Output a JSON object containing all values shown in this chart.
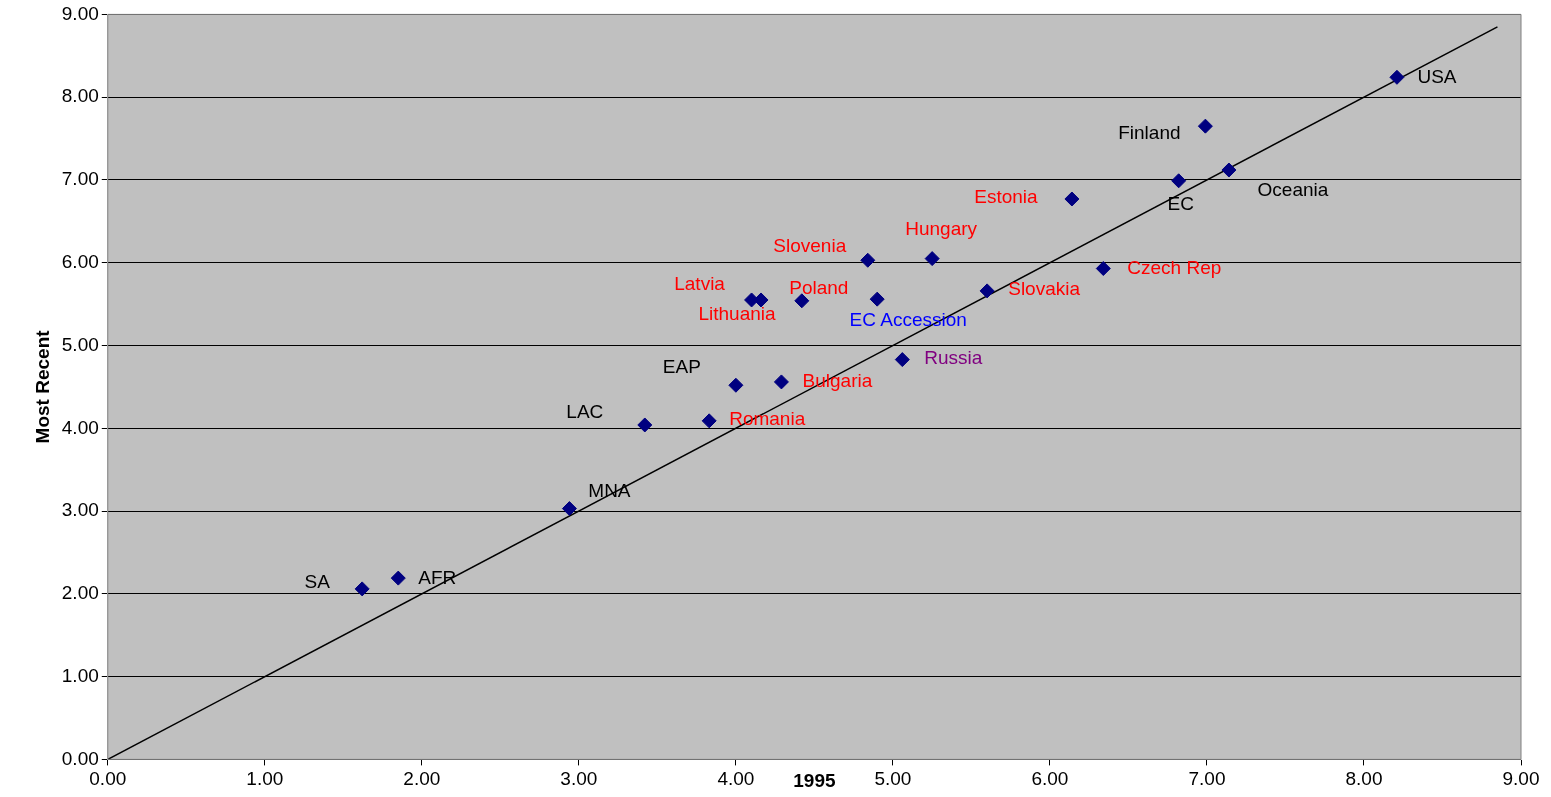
{
  "chart_data": {
    "type": "scatter",
    "xlabel": "1995",
    "ylabel": "Most Recent",
    "xlim": [
      0,
      9
    ],
    "ylim": [
      0,
      9
    ],
    "xticks": [
      {
        "value": 0,
        "label": "0.00"
      },
      {
        "value": 1,
        "label": "1.00"
      },
      {
        "value": 2,
        "label": "2.00"
      },
      {
        "value": 3,
        "label": "3.00"
      },
      {
        "value": 4,
        "label": "4.00"
      },
      {
        "value": 5,
        "label": "5.00"
      },
      {
        "value": 6,
        "label": "6.00"
      },
      {
        "value": 7,
        "label": "7.00"
      },
      {
        "value": 8,
        "label": "8.00"
      },
      {
        "value": 9,
        "label": "9.00"
      }
    ],
    "yticks": [
      {
        "value": 0,
        "label": "0.00"
      },
      {
        "value": 1,
        "label": "1.00"
      },
      {
        "value": 2,
        "label": "2.00"
      },
      {
        "value": 3,
        "label": "3.00"
      },
      {
        "value": 4,
        "label": "4.00"
      },
      {
        "value": 5,
        "label": "5.00"
      },
      {
        "value": 6,
        "label": "6.00"
      },
      {
        "value": 7,
        "label": "7.00"
      },
      {
        "value": 8,
        "label": "8.00"
      },
      {
        "value": 9,
        "label": "9.00"
      }
    ],
    "grid": "y",
    "legend": false,
    "series": [
      {
        "color": "#000080",
        "marker": "diamond",
        "x": [
          1.62,
          1.85,
          2.94,
          3.42,
          3.83,
          4.0,
          4.29,
          4.1,
          4.16,
          4.42,
          4.84,
          4.9,
          5.25,
          5.06,
          5.6,
          6.14,
          6.34,
          6.82,
          6.99,
          7.14,
          8.21
        ],
        "values": [
          2.06,
          2.19,
          3.03,
          4.04,
          4.09,
          4.52,
          4.56,
          5.55,
          5.55,
          5.54,
          6.03,
          5.56,
          6.05,
          4.83,
          5.66,
          6.77,
          5.93,
          6.99,
          7.65,
          7.12,
          8.24
        ],
        "value_labels": [
          "SA",
          "AFR",
          "MNA",
          "LAC",
          "Romania",
          "EAP",
          "Bulgaria",
          "Latvia",
          "Lithuania",
          "Poland",
          "Slovenia",
          "EC Accession",
          "Hungary",
          "Russia",
          "Slovakia",
          "Estonia",
          "Czech Rep",
          "EC",
          "Finland",
          "Oceania",
          "USA"
        ]
      },
      {
        "type": "line",
        "color": "#000000",
        "marker": "none",
        "line_style": "solid",
        "x": [
          0,
          8.85
        ],
        "values": [
          0,
          8.85
        ]
      }
    ]
  }
}
